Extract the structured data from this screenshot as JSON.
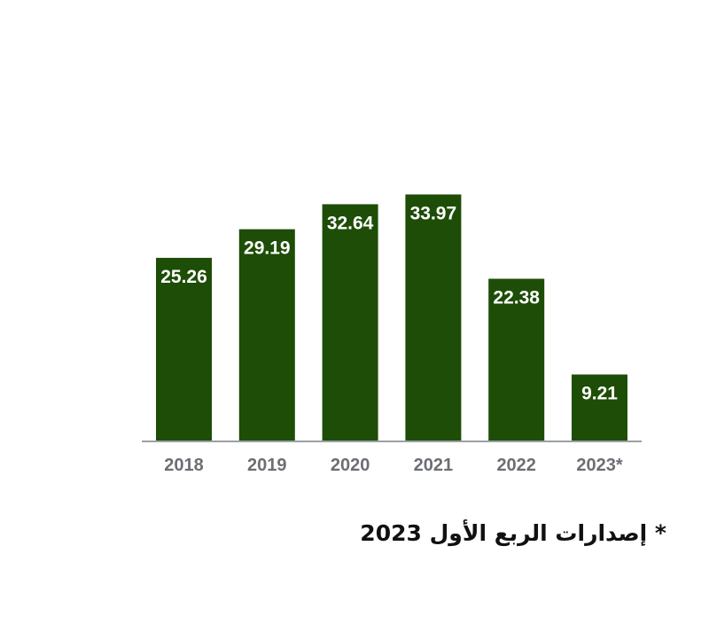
{
  "chart_data": {
    "type": "bar",
    "categories": [
      "2018",
      "2019",
      "2020",
      "2021",
      "2022",
      "2023*"
    ],
    "values": [
      25.26,
      29.19,
      32.64,
      33.97,
      22.38,
      9.21
    ],
    "value_labels": [
      "25.26",
      "29.19",
      "32.64",
      "33.97",
      "22.38",
      "9.21"
    ],
    "title": "",
    "xlabel": "",
    "ylabel": "",
    "ylim": [
      0,
      40
    ],
    "grid": false,
    "legend": "none",
    "colors": {
      "bar": "#1e4d07",
      "bar_label": "#ffffff",
      "axis": "#9aa0a4",
      "tick_label": "#6b6f73"
    }
  },
  "footnote": "* إصدارات الربع الأول 2023"
}
